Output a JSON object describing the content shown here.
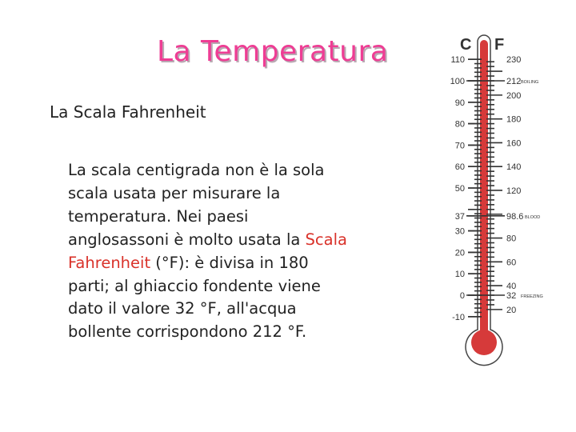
{
  "title": "La Temperatura",
  "subtitle": "La Scala Fahrenheit",
  "body": {
    "lines": [
      "La scala centigrada non è la sola",
      "scala usata per misurare la",
      "temperatura. Nei paesi",
      "anglosassoni è molto usata la "
    ],
    "highlight_1": "Scala",
    "highlight_2": "Fahrenheit",
    "after_highlight": " (°F): è divisa in 180",
    "lines_after": [
      "parti; al ghiaccio fondente viene",
      "dato il valore 32 °F, all'acqua",
      "bollente corrispondono 212 °F."
    ]
  },
  "thermometer": {
    "celsius_header": "C",
    "fahrenheit_header": "F",
    "celsius_labels": [
      "110",
      "100",
      "90",
      "80",
      "70",
      "60",
      "50",
      "37",
      "30",
      "20",
      "10",
      "0",
      "-10"
    ],
    "fahrenheit_labels": [
      "230",
      "212",
      "200",
      "180",
      "160",
      "140",
      "120",
      "98.6",
      "80",
      "60",
      "40",
      "32",
      "20"
    ],
    "annotations": {
      "boiling": "BOILING",
      "blood": "BLOOD",
      "freezing": "FREEZING"
    },
    "colors": {
      "mercury": "#d63a3a",
      "title": "#ee3d94",
      "highlight": "#d9322a"
    }
  }
}
